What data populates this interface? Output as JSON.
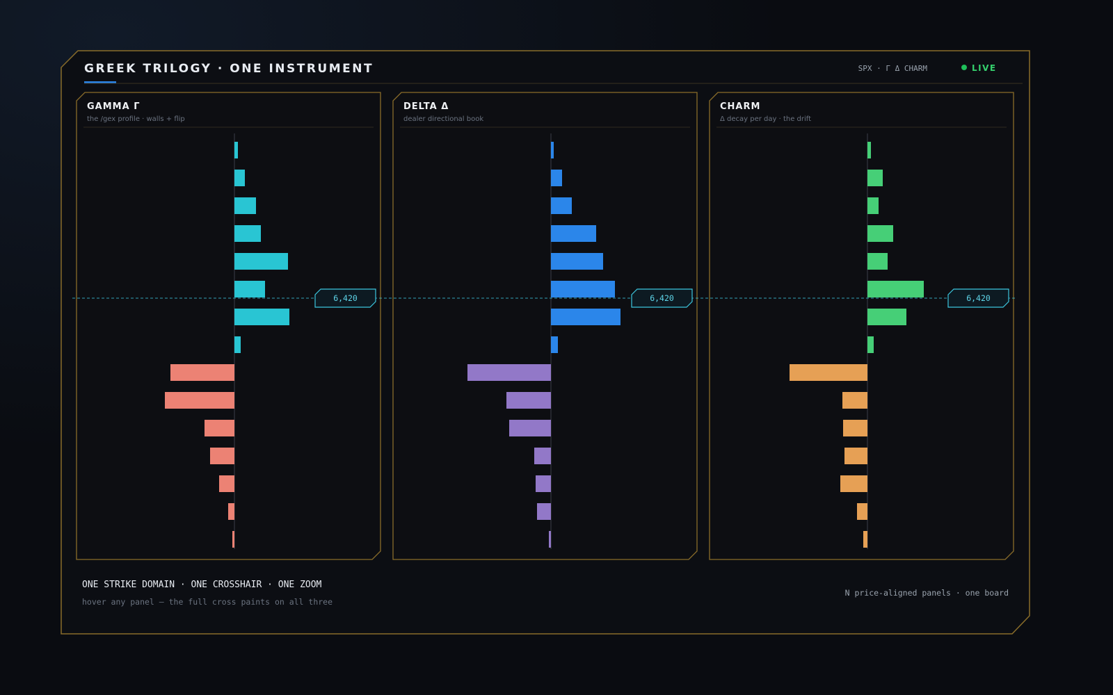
{
  "header": {
    "title": "GREEK TRILOGY · ONE INSTRUMENT",
    "instrument": "SPX · Γ Δ CHARM",
    "status": "LIVE"
  },
  "chart_data": [
    {
      "type": "bar",
      "orientation": "horizontal",
      "title": "GAMMA Γ",
      "subtitle": "the /gex profile · walls + flip",
      "crosshair_label": "6,420",
      "values": [
        5,
        15,
        31,
        38,
        77,
        44,
        79,
        9,
        -92,
        -100,
        -43,
        -35,
        -22,
        -9,
        -3
      ],
      "positive_color": "#29c5d3",
      "negative_color": "#ec8274"
    },
    {
      "type": "bar",
      "orientation": "horizontal",
      "title": "DELTA Δ",
      "subtitle": "dealer directional book",
      "crosshair_label": "6,420",
      "values": [
        4,
        16,
        30,
        65,
        75,
        92,
        100,
        10,
        -120,
        -64,
        -60,
        -24,
        -22,
        -20,
        -3
      ],
      "positive_color": "#2b86ea",
      "negative_color": "#9278c8"
    },
    {
      "type": "bar",
      "orientation": "horizontal",
      "title": "CHARM",
      "subtitle": "Δ decay per day · the drift",
      "crosshair_label": "6,420",
      "values": [
        5,
        22,
        16,
        37,
        29,
        81,
        56,
        9,
        -112,
        -36,
        -35,
        -33,
        -39,
        -15,
        -6
      ],
      "positive_color": "#46cf77",
      "negative_color": "#e6a055"
    }
  ],
  "footer": {
    "headline": "ONE STRIKE DOMAIN · ONE CROSSHAIR · ONE ZOOM",
    "hint": "hover any panel — the full cross paints on all three",
    "note": "N price-aligned panels · one board"
  }
}
